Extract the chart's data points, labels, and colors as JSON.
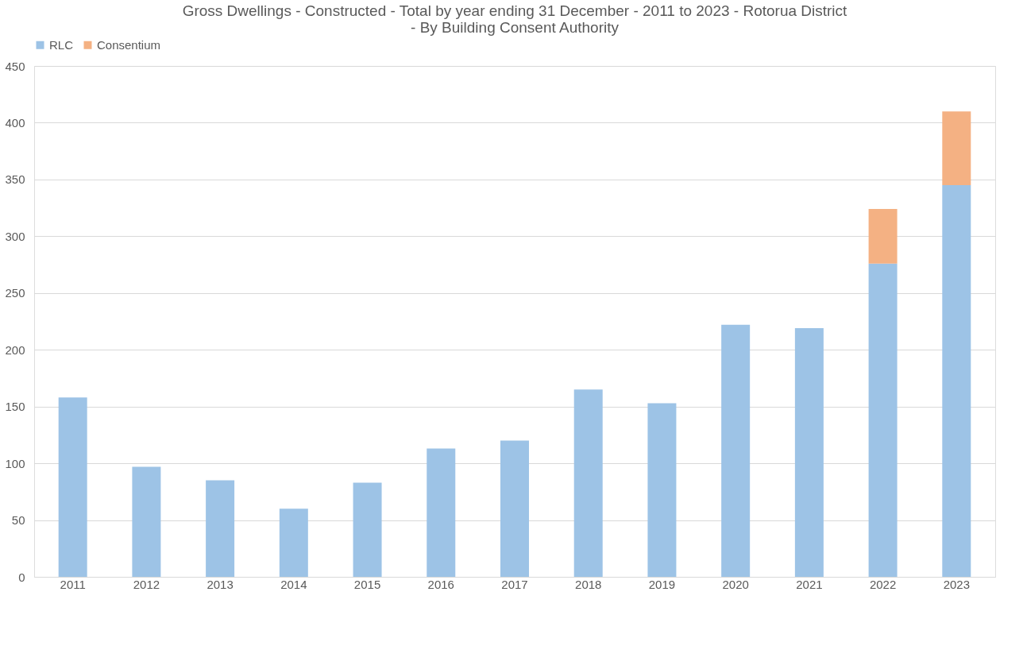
{
  "chart_data": {
    "type": "bar",
    "title": [
      "Gross Dwellings - Constructed - Total by year ending 31 December - 2011 to 2023 - Rotorua District",
      "- By Building Consent Authority"
    ],
    "categories": [
      "2011",
      "2012",
      "2013",
      "2014",
      "2015",
      "2016",
      "2017",
      "2018",
      "2019",
      "2020",
      "2021",
      "2022",
      "2023"
    ],
    "stacked": true,
    "series": [
      {
        "name": "RLC",
        "color": "#9dc3e6",
        "values": [
          158,
          97,
          85,
          60,
          83,
          113,
          120,
          165,
          153,
          222,
          219,
          276,
          345
        ]
      },
      {
        "name": "Consentium",
        "color": "#f4b183",
        "values": [
          null,
          null,
          null,
          null,
          null,
          null,
          null,
          null,
          null,
          null,
          null,
          48,
          65
        ]
      }
    ],
    "ylim": [
      0,
      450
    ],
    "yticks": [
      0,
      50,
      100,
      150,
      200,
      250,
      300,
      350,
      400,
      450
    ],
    "grid": "y",
    "legend": "top"
  }
}
